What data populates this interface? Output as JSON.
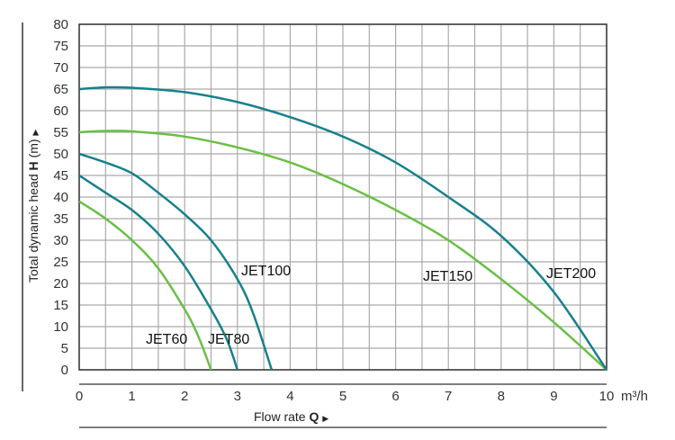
{
  "chart_data": {
    "type": "line",
    "title": "",
    "xlabel": "Flow rate",
    "xlabel_symbol": "Q",
    "x_unit": "m³/h",
    "ylabel": "Total dynamic head",
    "ylabel_symbol": "H",
    "y_unit": "(m)",
    "xlim": [
      0,
      10
    ],
    "ylim": [
      0,
      80
    ],
    "x_ticks": [
      "0",
      "1",
      "2",
      "3",
      "4",
      "5",
      "6",
      "7",
      "8",
      "9",
      "10"
    ],
    "y_ticks": [
      "0",
      "5",
      "10",
      "15",
      "20",
      "25",
      "30",
      "35",
      "40",
      "45",
      "50",
      "55",
      "60",
      "65",
      "70",
      "75",
      "80"
    ],
    "grid": true,
    "colors": {
      "teal": "#17808c",
      "green": "#6abf45"
    },
    "series": [
      {
        "name": "JET60",
        "color": "#6abf45",
        "x": [
          0,
          0.5,
          1,
          1.5,
          2,
          2.25,
          2.5
        ],
        "y": [
          39,
          35,
          30,
          23.5,
          14,
          8,
          0
        ]
      },
      {
        "name": "JET80",
        "color": "#17808c",
        "x": [
          0,
          0.5,
          1,
          1.5,
          2,
          2.5,
          2.8,
          3
        ],
        "y": [
          45,
          41,
          37,
          31.5,
          24,
          14,
          7,
          0
        ]
      },
      {
        "name": "JET100",
        "color": "#17808c",
        "x": [
          0,
          0.5,
          1,
          1.5,
          2,
          2.5,
          3,
          3.3,
          3.65
        ],
        "y": [
          50,
          48,
          45.5,
          41,
          36,
          30,
          21,
          13,
          0
        ]
      },
      {
        "name": "JET150",
        "color": "#6abf45",
        "x": [
          0,
          0.5,
          1,
          2,
          3,
          4,
          5,
          6,
          7,
          8,
          9,
          10
        ],
        "y": [
          55,
          55.3,
          55.2,
          54,
          51.5,
          48,
          43,
          37,
          30,
          21,
          11,
          0
        ]
      },
      {
        "name": "JET200",
        "color": "#17808c",
        "x": [
          0,
          0.5,
          1,
          2,
          3,
          4,
          5,
          6,
          7,
          8,
          9,
          10
        ],
        "y": [
          65,
          65.4,
          65.3,
          64.3,
          62,
          58.5,
          54,
          48,
          40,
          31,
          18,
          0
        ]
      }
    ]
  }
}
